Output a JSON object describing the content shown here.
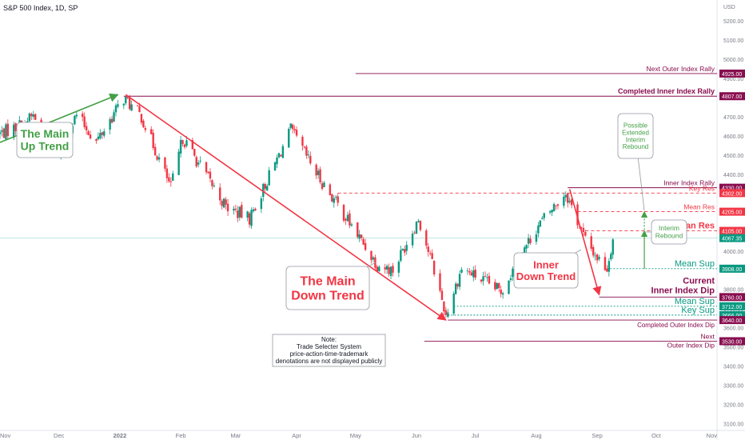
{
  "header": {
    "symbol": "S&P 500 Index, 1D, SP"
  },
  "chart_data": {
    "type": "candlestick",
    "currency_label": "USD",
    "ylim": [
      3065,
      5225
    ],
    "y_ticks": [
      3100,
      3200,
      3300,
      3400,
      3500,
      3600,
      3700,
      3800,
      3900,
      4000,
      4100,
      4200,
      4300,
      4400,
      4500,
      4600,
      4700,
      4800,
      4900,
      5000,
      5100,
      5200
    ],
    "x_range": [
      "2021-11-01",
      "2022-11-01"
    ],
    "x_ticks": [
      {
        "date": "2021-11-01",
        "label": "Nov"
      },
      {
        "date": "2021-12-01",
        "label": "Dec"
      },
      {
        "date": "2022-01-01",
        "label": "2022"
      },
      {
        "date": "2022-02-01",
        "label": "Feb"
      },
      {
        "date": "2022-03-01",
        "label": "Mar"
      },
      {
        "date": "2022-04-01",
        "label": "Apr"
      },
      {
        "date": "2022-05-01",
        "label": "May"
      },
      {
        "date": "2022-06-01",
        "label": "Jun"
      },
      {
        "date": "2022-07-01",
        "label": "Jul"
      },
      {
        "date": "2022-08-01",
        "label": "Aug"
      },
      {
        "date": "2022-09-01",
        "label": "Sep"
      },
      {
        "date": "2022-10-01",
        "label": "Oct"
      },
      {
        "date": "2022-11-01",
        "label": "Nov"
      }
    ],
    "price_path": [
      {
        "date": "2021-11-01",
        "close": 4613
      },
      {
        "date": "2021-11-10",
        "close": 4650
      },
      {
        "date": "2021-11-18",
        "close": 4705
      },
      {
        "date": "2021-11-26",
        "close": 4595
      },
      {
        "date": "2021-12-01",
        "close": 4520
      },
      {
        "date": "2021-12-10",
        "close": 4710
      },
      {
        "date": "2021-12-20",
        "close": 4570
      },
      {
        "date": "2022-01-03",
        "close": 4796
      },
      {
        "date": "2022-01-12",
        "close": 4700
      },
      {
        "date": "2022-01-27",
        "close": 4330
      },
      {
        "date": "2022-02-02",
        "close": 4590
      },
      {
        "date": "2022-02-24",
        "close": 4230
      },
      {
        "date": "2022-03-08",
        "close": 4170
      },
      {
        "date": "2022-03-29",
        "close": 4630
      },
      {
        "date": "2022-04-12",
        "close": 4390
      },
      {
        "date": "2022-04-29",
        "close": 4130
      },
      {
        "date": "2022-05-12",
        "close": 3930
      },
      {
        "date": "2022-05-20",
        "close": 3900
      },
      {
        "date": "2022-06-02",
        "close": 4170
      },
      {
        "date": "2022-06-10",
        "close": 3900
      },
      {
        "date": "2022-06-16",
        "close": 3667
      },
      {
        "date": "2022-06-24",
        "close": 3910
      },
      {
        "date": "2022-07-14",
        "close": 3790
      },
      {
        "date": "2022-08-01",
        "close": 4120
      },
      {
        "date": "2022-08-16",
        "close": 4305
      },
      {
        "date": "2022-08-26",
        "close": 4057
      },
      {
        "date": "2022-09-01",
        "close": 3966
      },
      {
        "date": "2022-09-06",
        "close": 3910
      },
      {
        "date": "2022-09-09",
        "close": 4067
      }
    ],
    "levels": [
      {
        "id": "lvl-4925",
        "price": 4925,
        "price_label": "4925.00",
        "label": "Next Outer Index Rally",
        "color": "#880e4f",
        "style": "solid",
        "x_from": "2022-05-01",
        "bold": false
      },
      {
        "id": "lvl-4807",
        "price": 4807,
        "price_label": "4807.00",
        "label": "Completed Inner Index Rally",
        "color": "#880e4f",
        "style": "solid",
        "x_from": "2022-01-03",
        "bold": true
      },
      {
        "id": "lvl-4330",
        "price": 4330,
        "price_label": "4330.00",
        "label": "Inner Index Rally",
        "color": "#880e4f",
        "style": "solid",
        "x_from": "2022-08-17",
        "bold": false
      },
      {
        "id": "lvl-4302",
        "price": 4302,
        "price_label": "4302.00",
        "label": "Key Res",
        "color": "#f23645",
        "style": "dash",
        "x_from": "2022-04-22",
        "bold": false
      },
      {
        "id": "lvl-4205",
        "price": 4205,
        "price_label": "4205.00",
        "label": "Mean Res",
        "color": "#f23645",
        "style": "dash",
        "x_from": "2022-08-22",
        "bold": false
      },
      {
        "id": "lvl-4105",
        "price": 4105,
        "price_label": "4105.00",
        "label": "Mean Res",
        "color": "#f23645",
        "style": "dash",
        "x_from": "2022-08-26",
        "bold": true,
        "big": true
      },
      {
        "id": "lvl-3908",
        "price": 3908,
        "price_label": "3908.00",
        "label": "Mean Sup",
        "color": "#089981",
        "style": "dot",
        "x_from": "2022-09-06",
        "bold": false,
        "big": true
      },
      {
        "id": "lvl-3712",
        "price": 3712,
        "price_label": "3712.00",
        "label": "Mean Sup",
        "color": "#089981",
        "style": "dot",
        "x_from": "2022-06-20",
        "bold": false,
        "big": true
      },
      {
        "id": "lvl-3666",
        "price": 3666,
        "price_label": "3666.00",
        "label": "Key Sup",
        "color": "#089981",
        "style": "dot",
        "x_from": "2022-06-17",
        "bold": false,
        "big": true
      },
      {
        "id": "lvl-3640",
        "price": 3640,
        "price_label": "3640.00",
        "label": "Completed Outer Index Dip",
        "color": "#880e4f",
        "style": "solid",
        "x_from": "2022-06-17",
        "bold": false
      },
      {
        "id": "lvl-3530",
        "price": 3530,
        "price_label": "3530.00",
        "label": "Next Outer Index Dip",
        "color": "#880e4f",
        "style": "solid",
        "x_from": "2022-06-05",
        "bold": false
      }
    ],
    "current_price": {
      "price": 4067.35,
      "label": "4067.35"
    },
    "inner_dip_tag": {
      "price": 3760,
      "label": "3760.00"
    },
    "trend_lines": [
      {
        "name": "up-trend-line",
        "from": {
          "date": "2021-11-01",
          "price": 4566
        },
        "to": {
          "date": "2021-12-31",
          "price": 4815
        },
        "color": "#43a047"
      },
      {
        "name": "main-down-trend-line",
        "from": {
          "date": "2022-01-04",
          "price": 4815
        },
        "to": {
          "date": "2022-06-16",
          "price": 3640
        },
        "color": "#f23645"
      },
      {
        "name": "inner-down-trend-line",
        "from": {
          "date": "2022-08-18",
          "price": 4322
        },
        "to": {
          "date": "2022-09-02",
          "price": 3772
        },
        "color": "#f23645"
      }
    ],
    "annotations": {
      "up_trend": "The Main\nUp Trend",
      "down_trend": "The Main\nDown Trend",
      "inner_down": "Inner\nDown Trend",
      "interim_rebound": "Interim\nRebound",
      "possible_extended": "Possible\nExtended\nInterim\nRebound",
      "note": "Note:\nTrade Selecter System\nprice-action-time-trademark\ndenotations are not displayed publicly",
      "current_dip": "Current\nInner Index Dip"
    },
    "colors": {
      "up": "#089981",
      "down": "#f23645",
      "purple": "#880e4f",
      "green_annot": "#43a047"
    }
  }
}
